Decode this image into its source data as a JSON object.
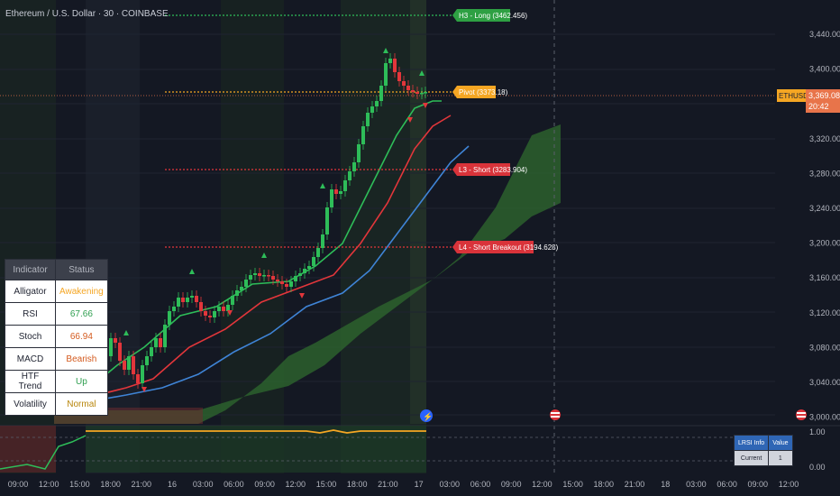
{
  "header": {
    "title": "Ethereum / U.S. Dollar · 30 · COINBASE"
  },
  "price_axis": {
    "ticks": [
      "3,440.00",
      "3,400.00",
      "3,360.00",
      "3,320.00",
      "3,280.00",
      "3,240.00",
      "3,200.00",
      "3,160.00",
      "3,120.00",
      "3,080.00",
      "3,040.00",
      "3,000.00"
    ],
    "symbol_tag": "ETHUSD",
    "last_price": "3,369.08",
    "countdown": "20:42"
  },
  "levels": {
    "h3": "H3 - Long (3462.456)",
    "pivot": "Pivot (3373.18)",
    "l3": "L3 - Short (3283.904)",
    "l4": "L4 - Short Breakout (3194.628)"
  },
  "time_axis": [
    "09:00",
    "12:00",
    "15:00",
    "18:00",
    "21:00",
    "16",
    "03:00",
    "06:00",
    "09:00",
    "12:00",
    "15:00",
    "18:00",
    "21:00",
    "17",
    "03:00",
    "06:00",
    "09:00",
    "12:00",
    "15:00",
    "18:00",
    "21:00",
    "18",
    "03:00",
    "06:00",
    "09:00",
    "12:00"
  ],
  "indicator_table": {
    "header": [
      "Indicator",
      "Status"
    ],
    "rows": [
      {
        "name": "Alligator",
        "status": "Awakening",
        "color": "#f5a623"
      },
      {
        "name": "RSI",
        "status": "67.66",
        "color": "#2e9e4f"
      },
      {
        "name": "Stoch",
        "status": "66.94",
        "color": "#d45a1e"
      },
      {
        "name": "MACD",
        "status": "Bearish",
        "color": "#d45a1e"
      },
      {
        "name": "HTF Trend",
        "status": "Up",
        "color": "#2e9e4f"
      },
      {
        "name": "Volatility",
        "status": "Normal",
        "color": "#b8860b"
      }
    ]
  },
  "lrsi_table": {
    "header": [
      "LRSI Info",
      "Value"
    ],
    "row": [
      "Current",
      "1"
    ]
  },
  "osc_axis": [
    "1.00",
    "0.00"
  ],
  "colors": {
    "background": "#141823",
    "up": "#26a69a",
    "down": "#ef5350",
    "green_ma": "#2ebd59",
    "red_ma": "#e2363b",
    "blue_ma": "#3f84d6",
    "pivot": "#f5a623",
    "cloud": "#2f6a2f"
  }
}
